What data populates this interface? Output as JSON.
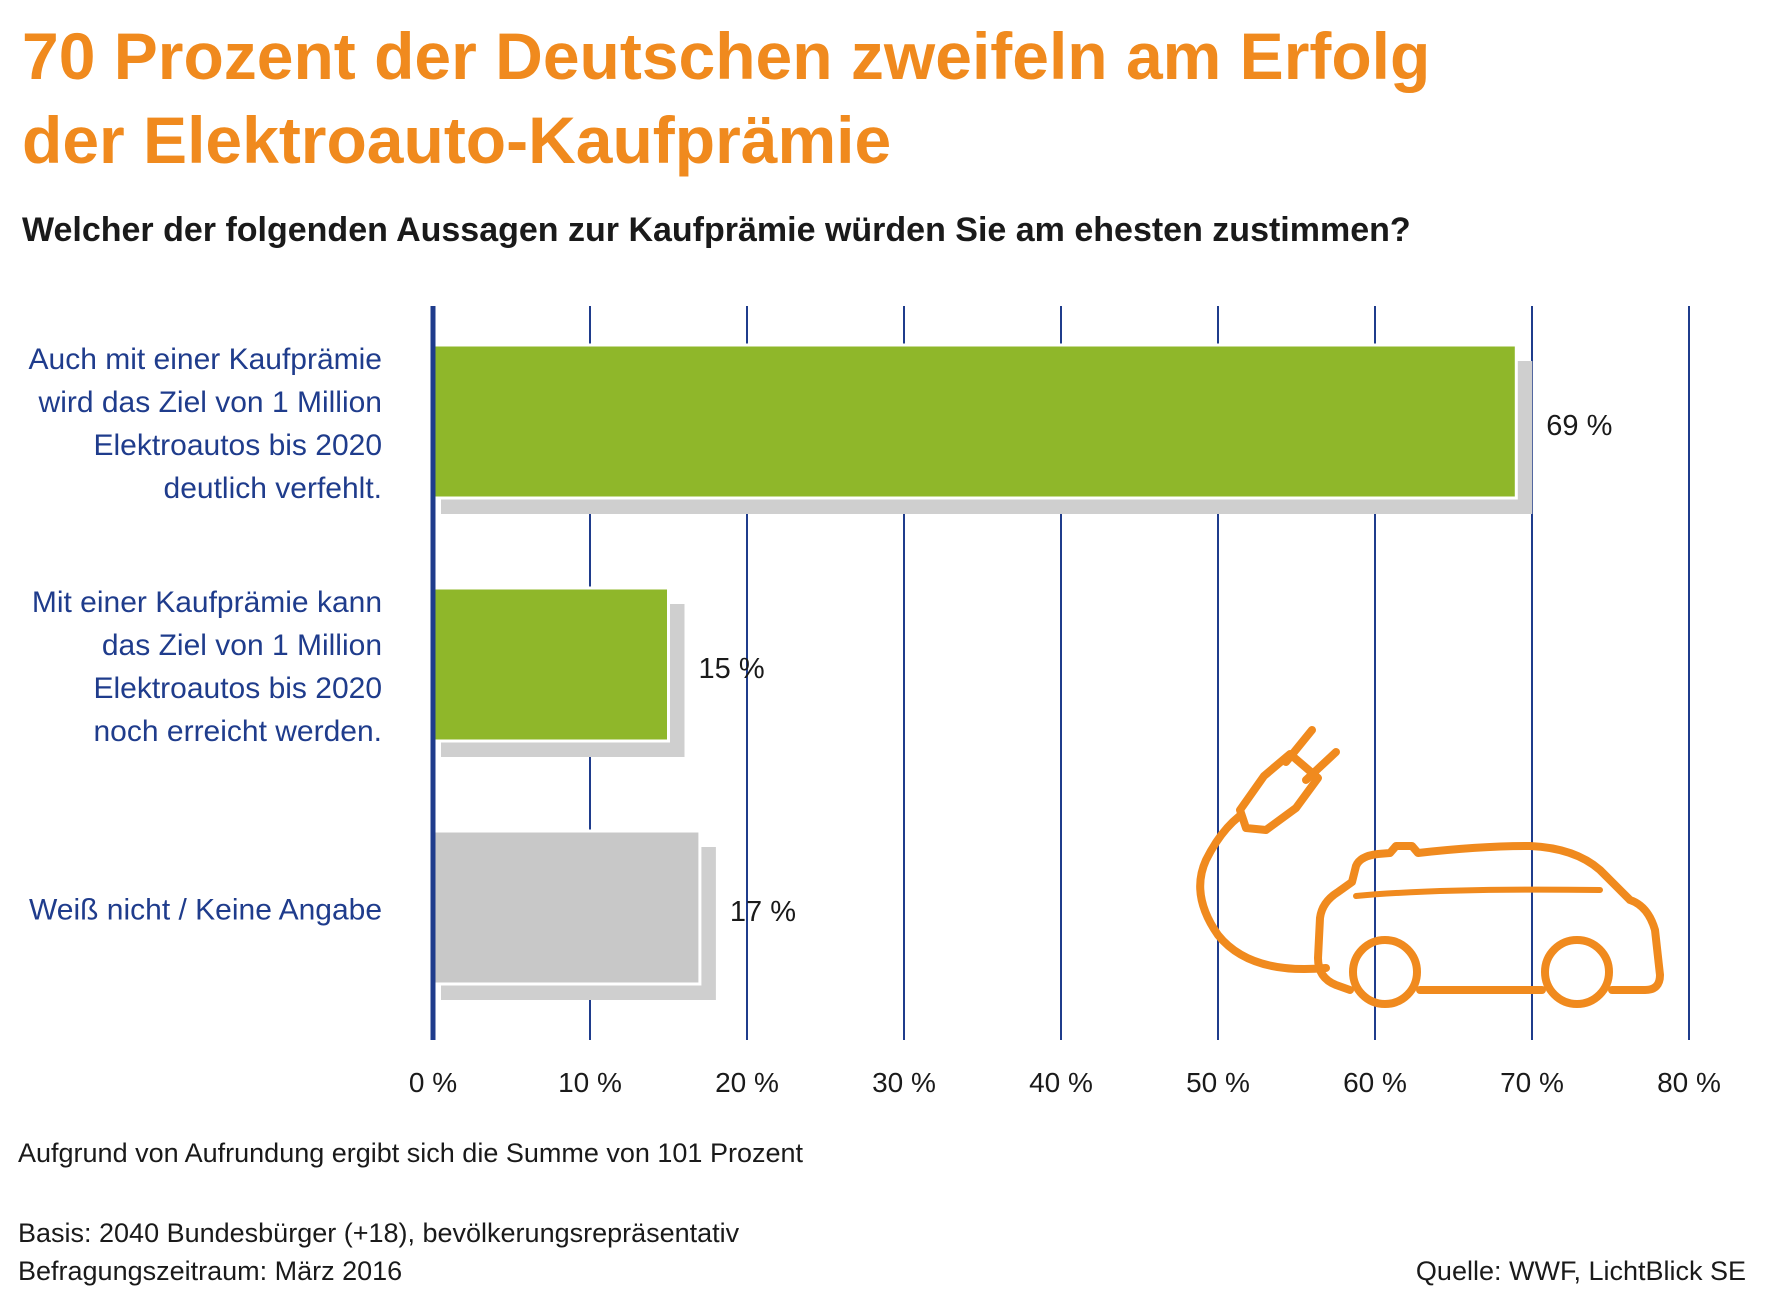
{
  "title_lines": [
    "70 Prozent der Deutschen zweifeln am Erfolg",
    "der Elektroauto-Kaufprämie"
  ],
  "question": "Welcher der folgenden Aussagen zur Kaufprämie würden Sie am ehesten zustimmen?",
  "chart_data": {
    "type": "bar",
    "orientation": "horizontal",
    "title": "70 Prozent der Deutschen zweifeln am Erfolg der Elektroauto-Kaufprämie",
    "subtitle": "Welcher der folgenden Aussagen zur Kaufprämie würden Sie am ehesten zustimmen?",
    "categories": [
      [
        "Auch mit einer Kaufprämie",
        "wird das Ziel von 1 Million",
        "Elektroautos bis 2020",
        "deutlich verfehlt."
      ],
      [
        "Mit einer Kaufprämie kann",
        "das Ziel von 1 Million",
        "Elektroautos bis 2020",
        "noch erreicht werden."
      ],
      [
        "Weiß nicht / Keine Angabe"
      ]
    ],
    "values": [
      69,
      15,
      17
    ],
    "value_labels": [
      "69 %",
      "15 %",
      "17 %"
    ],
    "bar_colors": [
      "#8fb72a",
      "#8fb72a",
      "#c8c8c8"
    ],
    "shadow_color": "#cfcfcf",
    "xlim": [
      0,
      80
    ],
    "x_ticks": [
      0,
      10,
      20,
      30,
      40,
      50,
      60,
      70,
      80
    ],
    "x_tick_labels": [
      "0 %",
      "10 %",
      "20 %",
      "30 %",
      "40 %",
      "50 %",
      "60 %",
      "70 %",
      "80 %"
    ],
    "grid": true,
    "grid_color": "#1f3c8c",
    "label_color": "#1f3c8c",
    "decoration_icon": "electric-car-plug-icon",
    "decoration_color": "#f08a1e"
  },
  "notes": {
    "rounding": "Aufgrund von Aufrundung ergibt sich die Summe von 101 Prozent",
    "basis": "Basis: 2040 Bundesbürger (+18), bevölkerungsrepräsentativ",
    "period": "Befragungszeitraum: März 2016",
    "source": "Quelle: WWF, LichtBlick SE"
  }
}
